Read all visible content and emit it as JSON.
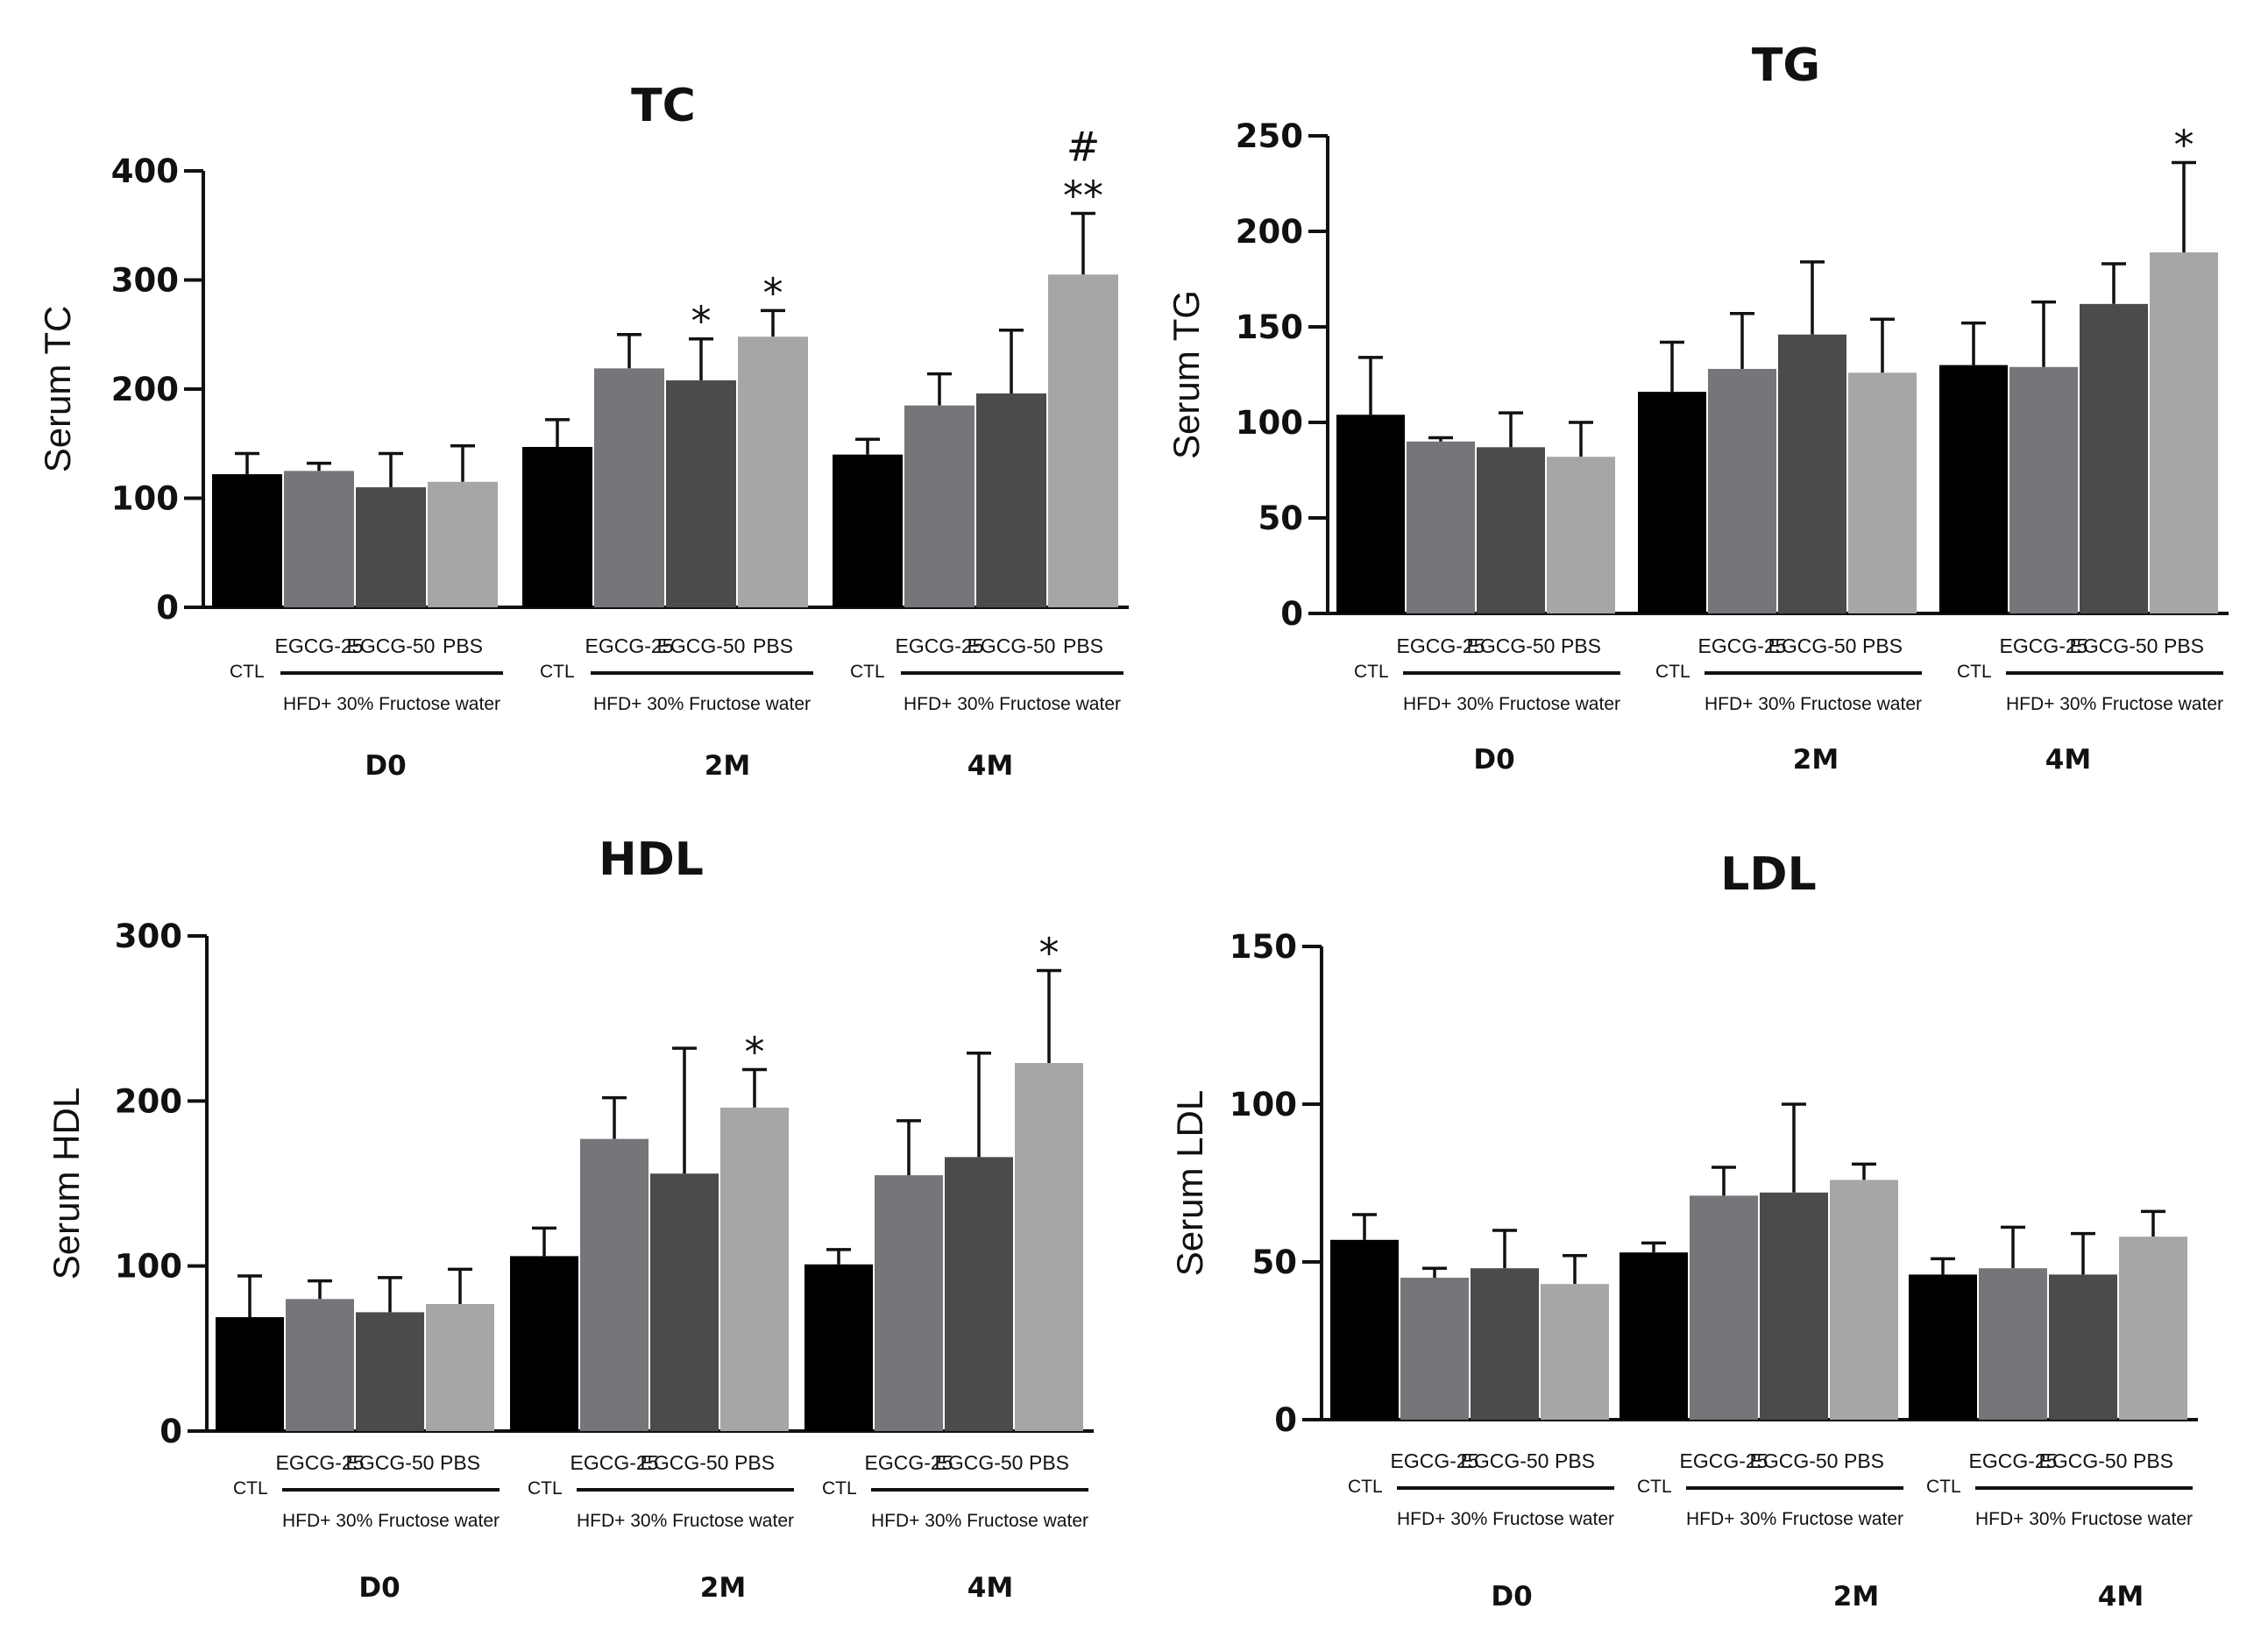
{
  "chart_data": [
    {
      "type": "bar",
      "title": "TC",
      "ylabel": "Serum TC",
      "xlabel": "",
      "ylim": [
        0,
        400
      ],
      "yticks": [
        0,
        100,
        200,
        300,
        400
      ],
      "timepoints": [
        "D0",
        "2M",
        "4M"
      ],
      "group_labels": [
        "CTL",
        "EGCG-25",
        "EGCG-50",
        "PBS"
      ],
      "treatment_label": "HFD+ 30% Fructose water",
      "series": [
        {
          "name": "CTL",
          "color": "#000000",
          "values": [
            122,
            147,
            140
          ],
          "errors": [
            19,
            25,
            14
          ]
        },
        {
          "name": "EGCG-25",
          "color": "#76767a",
          "values": [
            125,
            219,
            185
          ],
          "errors": [
            7,
            31,
            29
          ]
        },
        {
          "name": "EGCG-50",
          "color": "#4b4b4b",
          "values": [
            110,
            208,
            196
          ],
          "errors": [
            31,
            38,
            58
          ]
        },
        {
          "name": "PBS",
          "color": "#a6a6a6",
          "values": [
            115,
            248,
            305
          ],
          "errors": [
            33,
            24,
            56
          ]
        }
      ],
      "annotations": [
        {
          "timepoint": 1,
          "series": 2,
          "text": "*"
        },
        {
          "timepoint": 1,
          "series": 3,
          "text": "*"
        },
        {
          "timepoint": 2,
          "series": 3,
          "text": "# **"
        }
      ]
    },
    {
      "type": "bar",
      "title": "TG",
      "ylabel": "Serum TG",
      "xlabel": "",
      "ylim": [
        0,
        250
      ],
      "yticks": [
        0,
        50,
        100,
        150,
        200,
        250
      ],
      "timepoints": [
        "D0",
        "2M",
        "4M"
      ],
      "group_labels": [
        "CTL",
        "EGCG-25",
        "EGCG-50",
        "PBS"
      ],
      "treatment_label": "HFD+ 30% Fructose water",
      "series": [
        {
          "name": "CTL",
          "color": "#000000",
          "values": [
            104,
            116,
            130
          ],
          "errors": [
            30,
            26,
            22
          ]
        },
        {
          "name": "EGCG-25",
          "color": "#76767a",
          "values": [
            90,
            128,
            129
          ],
          "errors": [
            2,
            29,
            34
          ]
        },
        {
          "name": "EGCG-50",
          "color": "#4b4b4b",
          "values": [
            87,
            146,
            162
          ],
          "errors": [
            18,
            38,
            21
          ]
        },
        {
          "name": "PBS",
          "color": "#a6a6a6",
          "values": [
            82,
            126,
            189
          ],
          "errors": [
            18,
            28,
            47
          ]
        }
      ],
      "annotations": [
        {
          "timepoint": 2,
          "series": 3,
          "text": "*"
        }
      ]
    },
    {
      "type": "bar",
      "title": "HDL",
      "ylabel": "Serum HDL",
      "xlabel": "",
      "ylim": [
        0,
        300
      ],
      "yticks": [
        0,
        100,
        200,
        300
      ],
      "timepoints": [
        "D0",
        "2M",
        "4M"
      ],
      "group_labels": [
        "CTL",
        "EGCG-25",
        "EGCG-50",
        "PBS"
      ],
      "treatment_label": "HFD+ 30% Fructose water",
      "series": [
        {
          "name": "CTL",
          "color": "#000000",
          "values": [
            69,
            106,
            101
          ],
          "errors": [
            25,
            17,
            9
          ]
        },
        {
          "name": "EGCG-25",
          "color": "#76767a",
          "values": [
            80,
            177,
            155
          ],
          "errors": [
            11,
            25,
            33
          ]
        },
        {
          "name": "EGCG-50",
          "color": "#4b4b4b",
          "values": [
            72,
            156,
            166
          ],
          "errors": [
            21,
            76,
            63
          ]
        },
        {
          "name": "PBS",
          "color": "#a6a6a6",
          "values": [
            77,
            196,
            223
          ],
          "errors": [
            21,
            23,
            56
          ]
        }
      ],
      "annotations": [
        {
          "timepoint": 1,
          "series": 3,
          "text": "*"
        },
        {
          "timepoint": 2,
          "series": 3,
          "text": "*"
        }
      ]
    },
    {
      "type": "bar",
      "title": "LDL",
      "ylabel": "Serum LDL",
      "xlabel": "",
      "ylim": [
        0,
        150
      ],
      "yticks": [
        0,
        50,
        100,
        150
      ],
      "timepoints": [
        "D0",
        "2M",
        "4M"
      ],
      "group_labels": [
        "CTL",
        "EGCG-25",
        "EGCG-50",
        "PBS"
      ],
      "treatment_label": "HFD+ 30% Fructose water",
      "series": [
        {
          "name": "CTL",
          "color": "#000000",
          "values": [
            57,
            53,
            46
          ],
          "errors": [
            8,
            3,
            5
          ]
        },
        {
          "name": "EGCG-25",
          "color": "#76767a",
          "values": [
            45,
            71,
            48
          ],
          "errors": [
            3,
            9,
            13
          ]
        },
        {
          "name": "EGCG-50",
          "color": "#4b4b4b",
          "values": [
            48,
            72,
            46
          ],
          "errors": [
            12,
            28,
            13
          ]
        },
        {
          "name": "PBS",
          "color": "#a6a6a6",
          "values": [
            43,
            76,
            58
          ],
          "errors": [
            9,
            5,
            8
          ]
        }
      ],
      "annotations": []
    }
  ]
}
